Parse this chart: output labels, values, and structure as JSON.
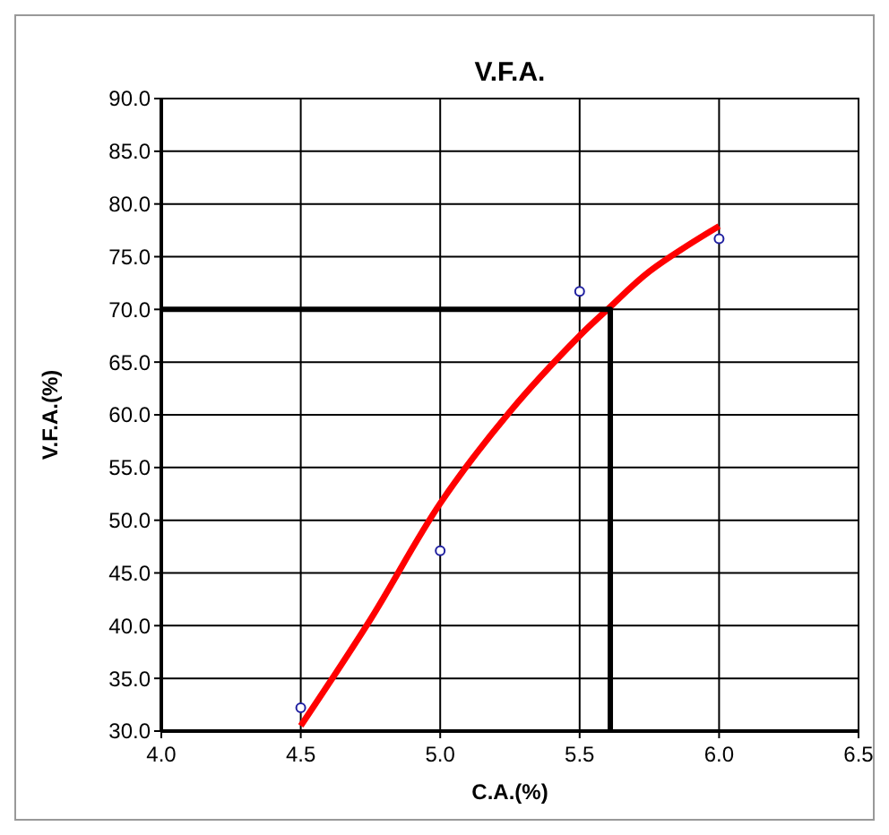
{
  "chart_data": {
    "type": "scatter",
    "title": "V.F.A.",
    "xlabel": "C.A.(%)",
    "ylabel": "V.F.A.(%)",
    "xlim": [
      4.0,
      6.5
    ],
    "xticks": [
      {
        "value": 4.0,
        "label": "4.0"
      },
      {
        "value": 4.5,
        "label": "4.5"
      },
      {
        "value": 5.0,
        "label": "5.0"
      },
      {
        "value": 5.5,
        "label": "5.5"
      },
      {
        "value": 6.0,
        "label": "6.0"
      },
      {
        "value": 6.5,
        "label": "6.5"
      }
    ],
    "ylim": [
      30,
      90
    ],
    "yticks": [
      {
        "value": 30,
        "label": "30.0"
      },
      {
        "value": 35,
        "label": "35.0"
      },
      {
        "value": 40,
        "label": "40.0"
      },
      {
        "value": 45,
        "label": "45.0"
      },
      {
        "value": 50,
        "label": "50.0"
      },
      {
        "value": 55,
        "label": "55.0"
      },
      {
        "value": 60,
        "label": "60.0"
      },
      {
        "value": 65,
        "label": "65.0"
      },
      {
        "value": 70,
        "label": "70.0"
      },
      {
        "value": 75,
        "label": "75.0"
      },
      {
        "value": 80,
        "label": "80.0"
      },
      {
        "value": 85,
        "label": "85.0"
      },
      {
        "value": 90,
        "label": "90.0"
      }
    ],
    "grid": true,
    "series": [
      {
        "color": "#1f1fa0",
        "marker": "circle",
        "x": [
          4.5,
          5.0,
          5.5,
          6.0
        ],
        "values": [
          32.2,
          47.1,
          71.7,
          76.7
        ]
      },
      {
        "type": "line",
        "color": "#ff0000",
        "x": [
          4.5,
          4.75,
          5.0,
          5.25,
          5.5,
          5.6,
          5.75,
          6.0
        ],
        "values": [
          30.5,
          40.6,
          51.6,
          60.3,
          67.5,
          70.0,
          73.6,
          77.9
        ]
      },
      {
        "type": "line",
        "color": "#000000",
        "x": [
          4.0,
          5.61,
          5.61
        ],
        "values": [
          70.0,
          70.0,
          30.0
        ]
      }
    ]
  }
}
